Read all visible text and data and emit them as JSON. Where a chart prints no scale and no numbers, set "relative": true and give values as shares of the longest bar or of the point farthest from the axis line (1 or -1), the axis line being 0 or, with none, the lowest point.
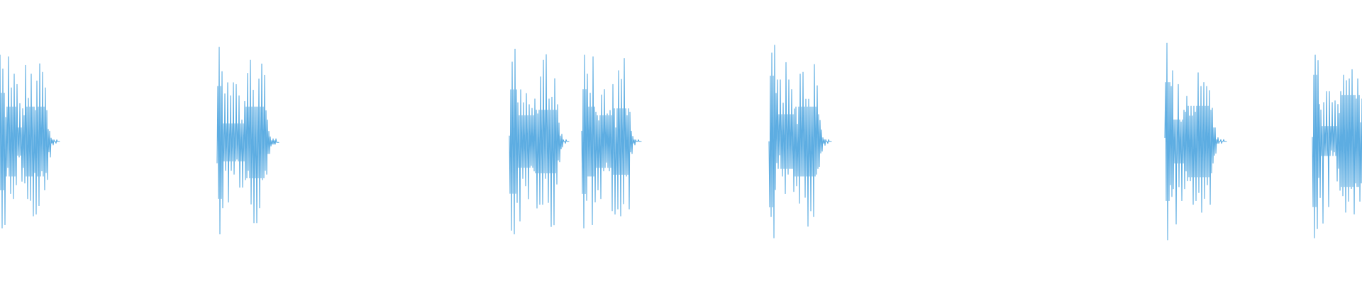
{
  "chart_data": [
    {
      "type": "line",
      "relative": true,
      "color": "#5dade2",
      "categories": [
        null,
        null,
        null,
        null,
        null,
        null,
        null,
        null,
        null,
        null,
        null,
        null,
        null,
        null,
        null,
        null,
        null,
        null,
        null,
        null,
        null,
        null,
        null,
        null,
        null,
        null,
        null,
        null,
        null,
        null,
        null,
        null,
        null,
        null,
        null,
        null,
        null,
        null,
        null,
        null,
        null,
        null,
        null,
        null,
        null,
        null,
        null,
        null,
        null,
        null,
        null,
        null,
        null,
        null,
        null,
        null,
        null,
        null,
        null,
        null,
        null,
        null,
        null,
        null,
        null,
        null,
        null,
        null,
        null,
        null,
        null,
        null,
        null,
        null,
        null,
        null,
        null,
        null,
        null,
        null,
        null,
        null,
        null,
        null,
        null
      ],
      "values": [
        1,
        0.22,
        0.78,
        0,
        0.92,
        0.22,
        0.78,
        0.02,
        0.64,
        0.3,
        0.7,
        0.35,
        0.99,
        0.3,
        0.7,
        0.2,
        0.81,
        0.3,
        0.7,
        0.17,
        0.89,
        0.3,
        0.7,
        0.25,
        0.83,
        0.42,
        0.58,
        0.41,
        0.72,
        0.42,
        0.58,
        0.27,
        0.69,
        0.35,
        0.65,
        0.26,
        0.94,
        0.3,
        0.7,
        0.17,
        0.75,
        0.3,
        0.7,
        0.16,
        0.89,
        0.3,
        0.7,
        0.07,
        0.7,
        0.32,
        0.68,
        0.08,
        0.85,
        0.3,
        0.7,
        0.13,
        0.95,
        0.3,
        0.7,
        0.33,
        0.9,
        0.3,
        0.7,
        0.22,
        0.81,
        0.32,
        0.68,
        0.28,
        0.57,
        0.44,
        0.56,
        0.41,
        0.52,
        0.49,
        0.51,
        0.48,
        0.51,
        0.5,
        0.5,
        0.49,
        0.51,
        0.5,
        0.5,
        0.5,
        0.5
      ]
    },
    {
      "type": "line",
      "relative": true,
      "color": "#5dade2",
      "categories": [
        null,
        null,
        null,
        null,
        null,
        null,
        null,
        null,
        null,
        null,
        null,
        null,
        null,
        null,
        null,
        null,
        null,
        null,
        null,
        null,
        null,
        null,
        null,
        null,
        null,
        null,
        null,
        null,
        null,
        null,
        null,
        null,
        null,
        null,
        null,
        null,
        null,
        null,
        null,
        null,
        null,
        null,
        null,
        null,
        null,
        null,
        null,
        null,
        null,
        null,
        null,
        null,
        null,
        null,
        null,
        null,
        null,
        null,
        null,
        null,
        null,
        null,
        null,
        null,
        null,
        null,
        null,
        null,
        null,
        null,
        null,
        null,
        null,
        null,
        null,
        null,
        null,
        null,
        null,
        null,
        null,
        null,
        null,
        null,
        null,
        null,
        null,
        null
      ],
      "values": [
        0.38,
        0.79,
        0.19,
        1,
        0,
        0.79,
        0.19,
        0.87,
        0.14,
        0.59,
        0.39,
        0.75,
        0.34,
        0.59,
        0.39,
        0.81,
        0.17,
        0.59,
        0.39,
        0.74,
        0.34,
        0.59,
        0.39,
        0.81,
        0.32,
        0.59,
        0.39,
        0.8,
        0.4,
        0.59,
        0.39,
        0.74,
        0.25,
        0.59,
        0.39,
        0.61,
        0.25,
        0.59,
        0.39,
        0.71,
        0.29,
        0.68,
        0.3,
        0.86,
        0.34,
        0.68,
        0.3,
        0.93,
        0.16,
        0.68,
        0.3,
        0.77,
        0.06,
        0.68,
        0.3,
        0.68,
        0.06,
        0.68,
        0.3,
        0.83,
        0.14,
        0.68,
        0.3,
        0.91,
        0.29,
        0.68,
        0.3,
        0.85,
        0.34,
        0.66,
        0.32,
        0.61,
        0.43,
        0.55,
        0.43,
        0.52,
        0.47,
        0.5,
        0.48,
        0.51,
        0.48,
        0.5,
        0.48,
        0.51,
        0.49,
        0.49,
        0.49,
        0.49
      ]
    },
    {
      "type": "line",
      "relative": true,
      "color": "#5dade2",
      "categories": [
        null,
        null,
        null,
        null,
        null,
        null,
        null,
        null,
        null,
        null,
        null,
        null,
        null,
        null,
        null,
        null,
        null,
        null,
        null,
        null,
        null,
        null,
        null,
        null,
        null,
        null,
        null,
        null,
        null,
        null,
        null,
        null,
        null,
        null,
        null,
        null,
        null,
        null,
        null,
        null,
        null,
        null,
        null,
        null,
        null,
        null,
        null,
        null,
        null,
        null,
        null,
        null,
        null,
        null,
        null,
        null,
        null,
        null,
        null,
        null,
        null,
        null,
        null,
        null,
        null,
        null,
        null,
        null,
        null,
        null,
        null,
        null,
        null,
        null,
        null,
        null,
        null,
        null,
        null,
        null,
        null,
        null,
        null,
        null,
        null
      ],
      "values": [
        0.53,
        0.22,
        0.78,
        0.02,
        0.93,
        0.22,
        0.78,
        0,
        1,
        0.22,
        0.78,
        0.17,
        0.71,
        0.36,
        0.64,
        0.07,
        0.78,
        0.36,
        0.64,
        0.3,
        0.71,
        0.36,
        0.64,
        0.26,
        0.76,
        0.36,
        0.64,
        0.19,
        0.7,
        0.36,
        0.64,
        0.37,
        0.68,
        0.36,
        0.64,
        0.34,
        0.73,
        0.33,
        0.67,
        0.14,
        0.65,
        0.33,
        0.67,
        0.16,
        0.85,
        0.33,
        0.67,
        0.16,
        0.94,
        0.33,
        0.67,
        0.3,
        0.97,
        0.33,
        0.67,
        0.17,
        0.73,
        0.33,
        0.67,
        0.04,
        0.74,
        0.33,
        0.67,
        0.05,
        0.84,
        0.33,
        0.67,
        0.27,
        0.7,
        0.4,
        0.6,
        0.39,
        0.53,
        0.46,
        0.54,
        0.47,
        0.51,
        0.5,
        0.5,
        0.49,
        0.51,
        0.5,
        0.5,
        0.5,
        0.5
      ]
    },
    {
      "type": "line",
      "relative": true,
      "color": "#5dade2",
      "categories": [
        null,
        null,
        null,
        null,
        null,
        null,
        null,
        null,
        null,
        null,
        null,
        null,
        null,
        null,
        null,
        null,
        null,
        null,
        null,
        null,
        null,
        null,
        null,
        null,
        null,
        null,
        null,
        null,
        null,
        null,
        null,
        null,
        null,
        null,
        null,
        null,
        null,
        null,
        null,
        null,
        null,
        null,
        null,
        null,
        null,
        null,
        null,
        null,
        null,
        null,
        null,
        null,
        null,
        null,
        null,
        null,
        null,
        null,
        null,
        null,
        null,
        null,
        null,
        null,
        null,
        null,
        null,
        null,
        null,
        null,
        null,
        null,
        null,
        null,
        null,
        null,
        null,
        null,
        null,
        null,
        null,
        null,
        null,
        null,
        null
      ],
      "values": [
        0.56,
        0.2,
        0.8,
        0,
        1,
        0.2,
        0.8,
        0.16,
        0.89,
        0.3,
        0.7,
        0.3,
        0.78,
        0.3,
        0.7,
        0.02,
        0.99,
        0.3,
        0.7,
        0.15,
        0.67,
        0.35,
        0.65,
        0.22,
        0.62,
        0.35,
        0.65,
        0.17,
        0.77,
        0.35,
        0.65,
        0.33,
        0.8,
        0.35,
        0.65,
        0.38,
        0.66,
        0.35,
        0.65,
        0.33,
        0.68,
        0.35,
        0.65,
        0.1,
        0.83,
        0.31,
        0.69,
        0.08,
        0.58,
        0.31,
        0.69,
        0.11,
        0.91,
        0.31,
        0.69,
        0.07,
        0.86,
        0.31,
        0.69,
        0.14,
        0.98,
        0.31,
        0.69,
        0.3,
        0.65,
        0.31,
        0.69,
        0.11,
        0.67,
        0.44,
        0.56,
        0.43,
        0.53,
        0.49,
        0.51,
        0.48,
        0.51,
        0.5,
        0.5,
        0.5,
        0.51,
        0.5,
        0.5,
        0.5,
        0.5
      ]
    },
    {
      "type": "line",
      "relative": true,
      "color": "#5dade2",
      "categories": [
        null,
        null,
        null,
        null,
        null,
        null,
        null,
        null,
        null,
        null,
        null,
        null,
        null,
        null,
        null,
        null,
        null,
        null,
        null,
        null,
        null,
        null,
        null,
        null,
        null,
        null,
        null,
        null,
        null,
        null,
        null,
        null,
        null,
        null,
        null,
        null,
        null,
        null,
        null,
        null,
        null,
        null,
        null,
        null,
        null,
        null,
        null,
        null,
        null,
        null,
        null,
        null,
        null,
        null,
        null,
        null,
        null,
        null,
        null,
        null,
        null,
        null,
        null,
        null,
        null,
        null,
        null,
        null,
        null,
        null,
        null,
        null,
        null,
        null,
        null,
        null,
        null,
        null,
        null,
        null,
        null,
        null,
        null,
        null,
        null,
        null,
        null,
        null,
        null
      ],
      "values": [
        0.5,
        0.16,
        0.84,
        0.11,
        0.96,
        0.16,
        0.84,
        0,
        1,
        0.25,
        0.75,
        0.39,
        0.82,
        0.36,
        0.64,
        0.43,
        0.82,
        0.36,
        0.64,
        0.32,
        0.7,
        0.36,
        0.64,
        0.23,
        0.91,
        0.36,
        0.64,
        0.33,
        0.82,
        0.36,
        0.64,
        0.36,
        0.77,
        0.36,
        0.64,
        0.24,
        0.67,
        0.32,
        0.68,
        0.27,
        0.59,
        0.32,
        0.68,
        0.18,
        0.85,
        0.32,
        0.68,
        0.32,
        0.86,
        0.32,
        0.68,
        0.21,
        0.72,
        0.32,
        0.68,
        0.06,
        0.72,
        0.32,
        0.68,
        0.14,
        0.68,
        0.32,
        0.68,
        0.11,
        0.9,
        0.32,
        0.68,
        0.33,
        0.79,
        0.36,
        0.64,
        0.37,
        0.61,
        0.44,
        0.56,
        0.45,
        0.52,
        0.49,
        0.51,
        0.48,
        0.51,
        0.5,
        0.5,
        0.49,
        0.51,
        0.5,
        0.5,
        0.5,
        0.5
      ]
    },
    {
      "type": "line",
      "relative": true,
      "color": "#5dade2",
      "categories": [
        null,
        null,
        null,
        null,
        null,
        null,
        null,
        null,
        null,
        null,
        null,
        null,
        null,
        null,
        null,
        null,
        null,
        null,
        null,
        null,
        null,
        null,
        null,
        null,
        null,
        null,
        null,
        null,
        null,
        null,
        null,
        null,
        null,
        null,
        null,
        null,
        null,
        null,
        null,
        null,
        null,
        null,
        null,
        null,
        null,
        null,
        null,
        null,
        null,
        null,
        null,
        null,
        null,
        null,
        null,
        null,
        null,
        null,
        null,
        null,
        null,
        null,
        null,
        null,
        null,
        null,
        null,
        null,
        null,
        null,
        null,
        null,
        null,
        null,
        null,
        null,
        null,
        null,
        null,
        null,
        null,
        null,
        null,
        null,
        null,
        null,
        null,
        null
      ],
      "values": [
        0.52,
        0.8,
        0.2,
        1,
        0,
        0.8,
        0.2,
        0.8,
        0.28,
        0.78,
        0.22,
        0.86,
        0.26,
        0.61,
        0.39,
        0.61,
        0.08,
        0.61,
        0.39,
        0.79,
        0.27,
        0.61,
        0.39,
        0.6,
        0.2,
        0.61,
        0.39,
        0.66,
        0.26,
        0.65,
        0.35,
        0.73,
        0.3,
        0.68,
        0.32,
        0.63,
        0.3,
        0.68,
        0.32,
        0.63,
        0.18,
        0.68,
        0.32,
        0.65,
        0.2,
        0.68,
        0.32,
        0.85,
        0.24,
        0.68,
        0.32,
        0.78,
        0.14,
        0.68,
        0.32,
        0.8,
        0.21,
        0.68,
        0.32,
        0.78,
        0.28,
        0.68,
        0.32,
        0.76,
        0.18,
        0.66,
        0.34,
        0.67,
        0.39,
        0.57,
        0.43,
        0.57,
        0.44,
        0.51,
        0.49,
        0.52,
        0.49,
        0.5,
        0.5,
        0.51,
        0.49,
        0.5,
        0.5,
        0.51,
        0.5,
        0.5,
        0.5,
        0.5
      ]
    },
    {
      "type": "line",
      "relative": true,
      "color": "#5dade2",
      "categories": [
        null,
        null,
        null,
        null,
        null,
        null,
        null,
        null,
        null,
        null,
        null,
        null,
        null,
        null,
        null,
        null,
        null,
        null,
        null,
        null,
        null,
        null,
        null,
        null,
        null,
        null,
        null,
        null,
        null,
        null,
        null,
        null,
        null,
        null,
        null,
        null,
        null,
        null,
        null,
        null,
        null,
        null,
        null,
        null,
        null,
        null,
        null,
        null,
        null,
        null,
        null,
        null,
        null,
        null,
        null,
        null,
        null,
        null,
        null,
        null,
        null,
        null,
        null,
        null,
        null,
        null,
        null,
        null,
        null,
        null,
        null,
        null
      ],
      "values": [
        0.55,
        0.17,
        0.89,
        0,
        1,
        0.17,
        0.89,
        0.05,
        0.97,
        0.33,
        0.73,
        0.22,
        0.7,
        0.45,
        0.61,
        0.08,
        0.74,
        0.45,
        0.61,
        0.45,
        0.8,
        0.45,
        0.61,
        0.17,
        0.8,
        0.45,
        0.61,
        0.48,
        0.74,
        0.45,
        0.61,
        0.47,
        0.75,
        0.45,
        0.61,
        0.31,
        0.73,
        0.38,
        0.68,
        0.26,
        0.8,
        0.28,
        0.78,
        0.23,
        0.89,
        0.28,
        0.78,
        0.14,
        0.86,
        0.28,
        0.78,
        0.2,
        0.87,
        0.28,
        0.78,
        0.27,
        0.92,
        0.28,
        0.78,
        0.13,
        0.78,
        0.3,
        0.76,
        0.28,
        0.87,
        0.28,
        0.78,
        0.2,
        0.63,
        0.3,
        0.76,
        0.42
      ]
    }
  ]
}
